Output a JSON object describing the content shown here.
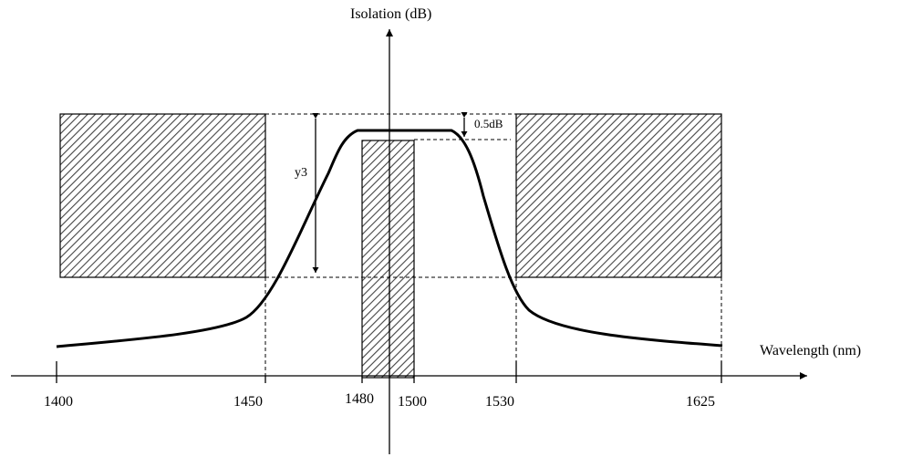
{
  "axes": {
    "y_label": "Isolation (dB)",
    "x_label": "Wavelength (nm)"
  },
  "ticks": [
    "1400",
    "1450",
    "1480",
    "1500",
    "1530",
    "1625"
  ],
  "annotations": {
    "ripple": "0.5dB",
    "height": "y3"
  }
}
